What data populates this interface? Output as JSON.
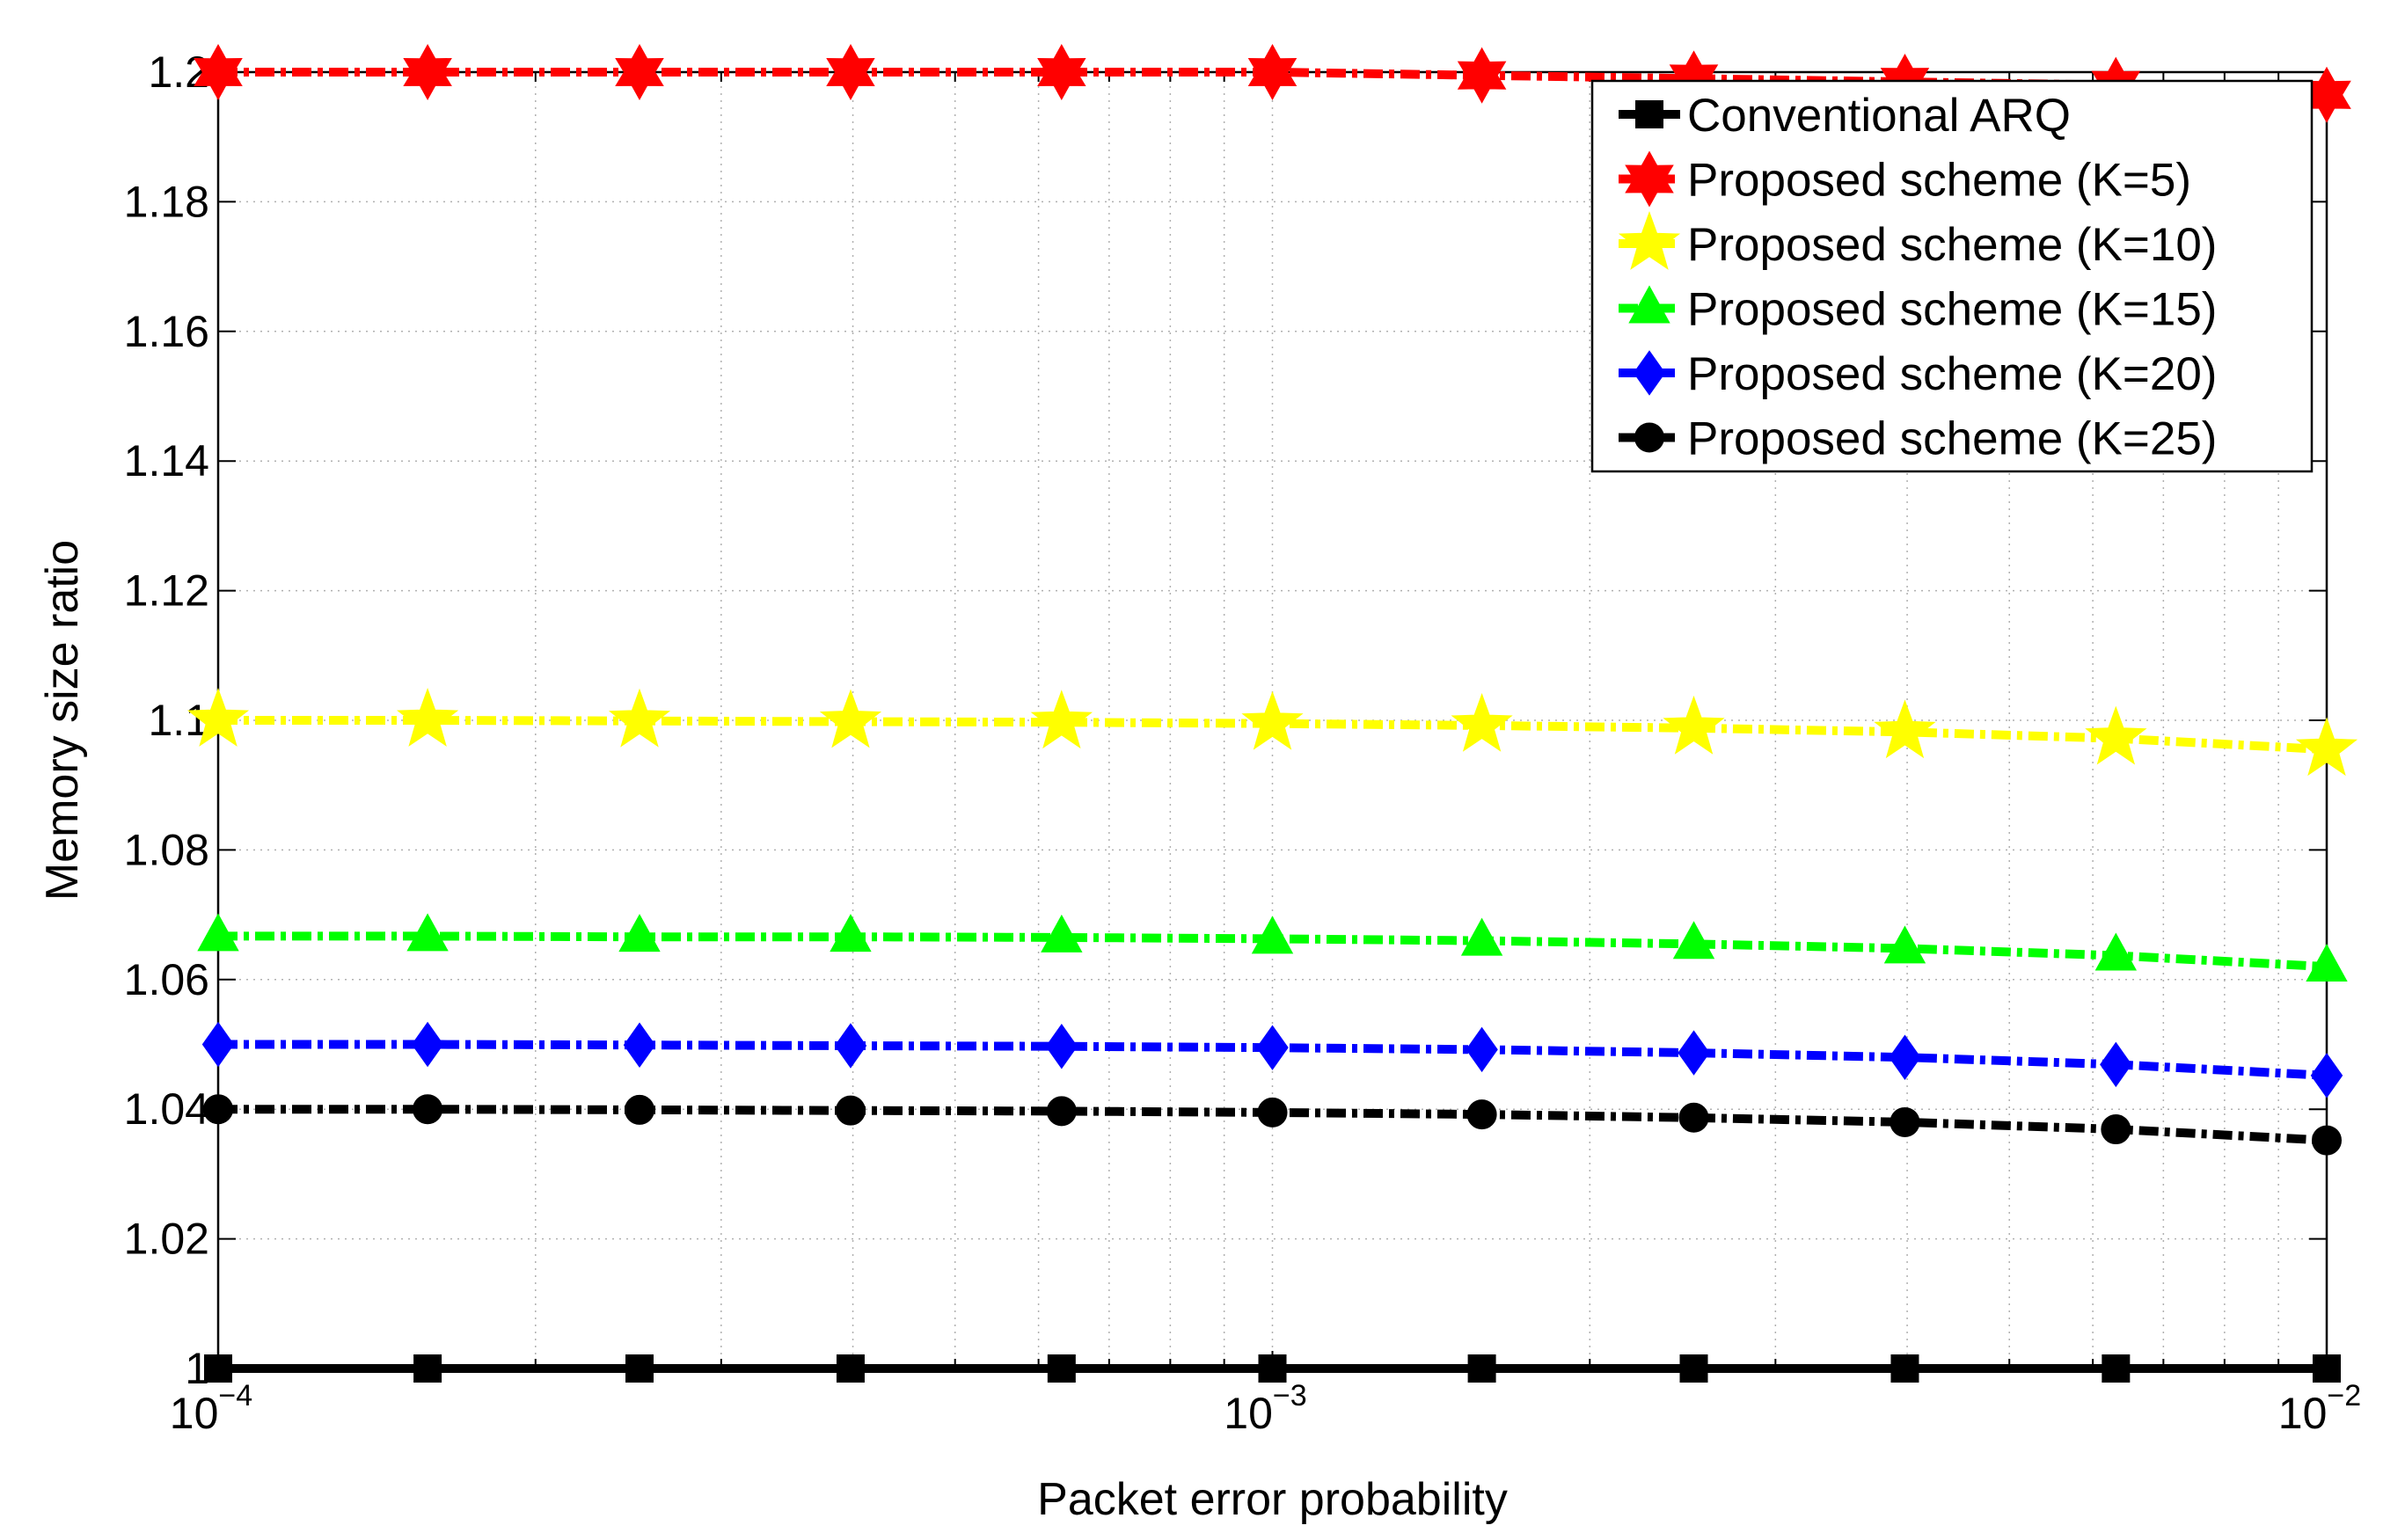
{
  "chart_data": {
    "type": "line",
    "title": "",
    "xlabel": "Packet error probability",
    "ylabel": "Memory size ratio",
    "xscale": "log",
    "xlim": [
      0.0001,
      0.01
    ],
    "ylim": [
      1.0,
      1.2
    ],
    "grid": true,
    "legend_position": "top-right",
    "x_ticks": [
      {
        "base": "10",
        "exp": "−4"
      },
      {
        "base": "10",
        "exp": "−3"
      },
      {
        "base": "10",
        "exp": "−2"
      }
    ],
    "y_ticks": [
      "1",
      "1.02",
      "1.04",
      "1.06",
      "1.08",
      "1.1",
      "1.12",
      "1.14",
      "1.16",
      "1.18",
      "1.2"
    ],
    "x": [
      0.0001,
      0.000158,
      0.000251,
      0.000398,
      0.000631,
      0.001,
      0.00158,
      0.00251,
      0.00398,
      0.00631,
      0.01
    ],
    "series": [
      {
        "name": "Conventional ARQ",
        "color": "#000000",
        "marker": "square",
        "style": "solid",
        "values": [
          1.0,
          1.0,
          1.0,
          1.0,
          1.0,
          1.0,
          1.0,
          1.0,
          1.0,
          1.0,
          1.0
        ]
      },
      {
        "name": "Proposed scheme (K=5)",
        "color": "#ff0000",
        "marker": "hexagram",
        "style": "dashdot",
        "values": [
          1.2,
          1.2,
          1.2,
          1.2,
          1.2,
          1.2,
          1.1995,
          1.199,
          1.1985,
          1.198,
          1.1965
        ]
      },
      {
        "name": "Proposed scheme (K=10)",
        "color": "#ffff00",
        "marker": "pentagram",
        "style": "dashdot",
        "values": [
          1.1,
          1.1,
          1.0999,
          1.0998,
          1.0997,
          1.0995,
          1.0992,
          1.0988,
          1.0982,
          1.0972,
          1.0955
        ]
      },
      {
        "name": "Proposed scheme (K=15)",
        "color": "#00ff00",
        "marker": "triangle",
        "style": "dashdot",
        "values": [
          1.0667,
          1.0667,
          1.0666,
          1.0666,
          1.0665,
          1.0663,
          1.066,
          1.0655,
          1.0648,
          1.0637,
          1.062
        ]
      },
      {
        "name": "Proposed scheme (K=20)",
        "color": "#0000ff",
        "marker": "diamond",
        "style": "dashdot",
        "values": [
          1.05,
          1.05,
          1.0499,
          1.0498,
          1.0497,
          1.0495,
          1.0492,
          1.0487,
          1.048,
          1.0469,
          1.0452
        ]
      },
      {
        "name": "Proposed scheme (K=25)",
        "color": "#000000",
        "marker": "circle",
        "style": "dashdot",
        "values": [
          1.04,
          1.04,
          1.0399,
          1.0398,
          1.0397,
          1.0395,
          1.0392,
          1.0387,
          1.038,
          1.0369,
          1.0352
        ]
      }
    ]
  }
}
